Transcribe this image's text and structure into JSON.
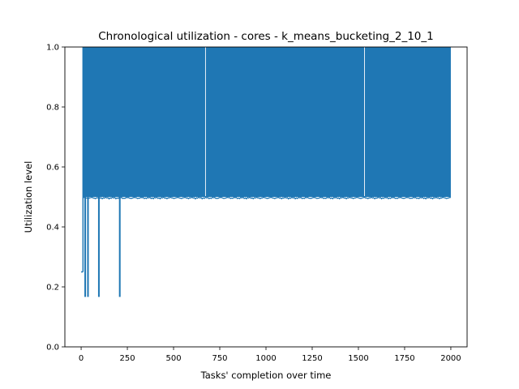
{
  "chart_data": {
    "type": "line",
    "title": "Chronological utilization - cores - k_means_bucketing_2_10_1",
    "xlabel": "Tasks' completion over time",
    "ylabel": "Utilization level",
    "xlim": [
      -88,
      2088
    ],
    "ylim": [
      0,
      1.0
    ],
    "xticks": [
      0,
      250,
      500,
      750,
      1000,
      1250,
      1500,
      1750,
      2000
    ],
    "yticks": [
      0.0,
      0.2,
      0.4,
      0.6,
      0.8,
      1.0
    ],
    "xtick_labels": [
      "0",
      "250",
      "500",
      "750",
      "1000",
      "1250",
      "1500",
      "1750",
      "2000"
    ],
    "ytick_labels": [
      "0.0",
      "0.2",
      "0.4",
      "0.6",
      "0.8",
      "1.0"
    ],
    "grid": false,
    "series": [
      {
        "color": "#1f77b4",
        "description_points": {
          "initial_x": [
            0,
            10
          ],
          "initial_y": 0.25,
          "dense_region_x": [
            10,
            2000
          ],
          "dense_region_y_range": [
            0.5,
            1.0
          ],
          "dips_to": 0.1667,
          "dip_x": [
            22,
            37,
            96,
            209
          ],
          "gaps_x": [
            673,
            1533
          ]
        }
      }
    ]
  }
}
